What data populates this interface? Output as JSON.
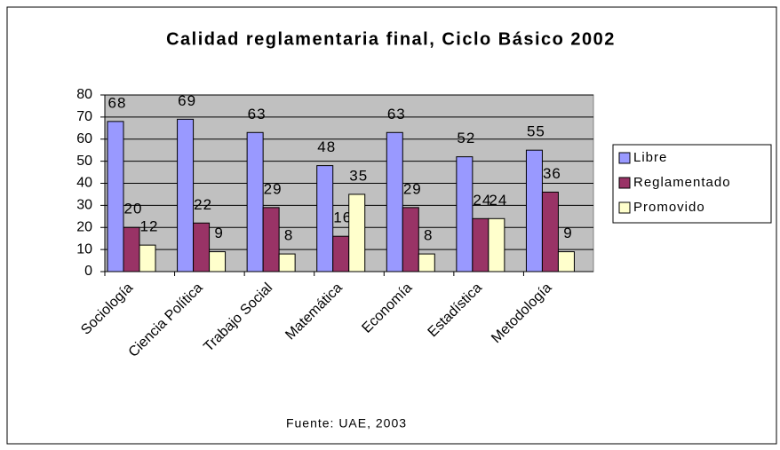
{
  "chart_data": {
    "type": "bar",
    "title": "Calidad reglamentaria final, Ciclo Básico 2002",
    "annotation": "Fuente: UAE, 2003",
    "categories": [
      "Sociología",
      "Ciencia Política",
      "Trabajo Social",
      "Matemática",
      "Economía",
      "Estadística",
      "Metodología"
    ],
    "series": [
      {
        "name": "Libre",
        "color": "#9999ff",
        "values": [
          68,
          69,
          63,
          48,
          63,
          52,
          55
        ]
      },
      {
        "name": "Reglamentado",
        "color": "#993366",
        "values": [
          20,
          22,
          29,
          16,
          29,
          24,
          36
        ]
      },
      {
        "name": "Promovido",
        "color": "#ffffcc",
        "values": [
          12,
          9,
          8,
          35,
          8,
          24,
          9
        ]
      }
    ],
    "ylim": [
      0,
      80
    ],
    "yticks": [
      0,
      10,
      20,
      30,
      40,
      50,
      60,
      70,
      80
    ],
    "grid": true,
    "legend": "right"
  }
}
